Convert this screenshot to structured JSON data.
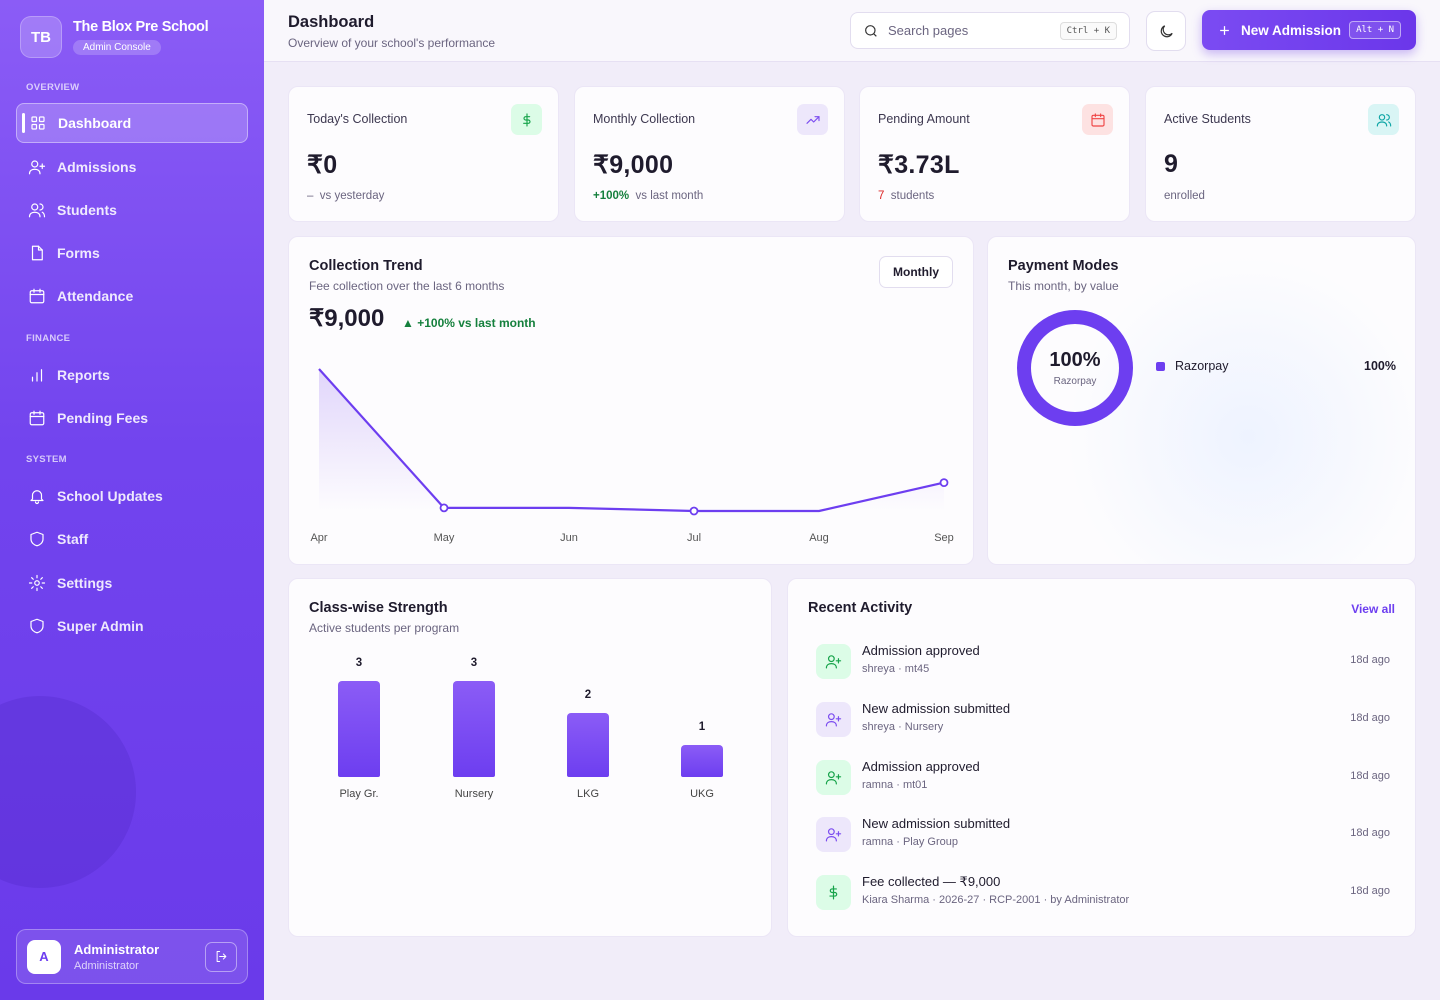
{
  "sidebar": {
    "logo": "TB",
    "school_name": "The Blox Pre School",
    "console_badge": "Admin Console",
    "sections": [
      "OVERVIEW",
      "FINANCE",
      "SYSTEM"
    ],
    "items": [
      {
        "label": "Dashboard",
        "icon": "grid-icon"
      },
      {
        "label": "Admissions",
        "icon": "user-plus-icon"
      },
      {
        "label": "Students",
        "icon": "users-icon"
      },
      {
        "label": "Forms",
        "icon": "file-icon"
      },
      {
        "label": "Attendance",
        "icon": "calendar-icon"
      },
      {
        "label": "Reports",
        "icon": "bar-chart-icon"
      },
      {
        "label": "Pending Fees",
        "icon": "calendar-icon"
      },
      {
        "label": "School Updates",
        "icon": "bell-icon"
      },
      {
        "label": "Staff",
        "icon": "shield-icon"
      },
      {
        "label": "Settings",
        "icon": "gear-icon"
      },
      {
        "label": "Super Admin",
        "icon": "shield-icon"
      }
    ],
    "active_item": "Dashboard",
    "user": {
      "initial": "A",
      "name": "Administrator",
      "role": "Administrator"
    }
  },
  "header": {
    "title": "Dashboard",
    "subtitle": "Overview of your school's performance",
    "search_placeholder": "Search pages",
    "search_shortcut": "Ctrl + K",
    "new_button_label": "New Admission",
    "new_button_shortcut": "Alt + N"
  },
  "stats": [
    {
      "label": "Today's Collection",
      "value": "₹0",
      "delta": "–",
      "delta_text": "vs yesterday",
      "icon": "dollar-icon",
      "icon_color": "#16a34a",
      "icon_bg": "#dcfce7"
    },
    {
      "label": "Monthly Collection",
      "value": "₹9,000",
      "delta": "+100%",
      "delta_text": "vs last month",
      "icon": "trending-up-icon",
      "icon_color": "#7c4df0",
      "icon_bg": "#ede7fb"
    },
    {
      "label": "Pending Amount",
      "value": "₹3.73L",
      "delta": "7",
      "delta_text": "students",
      "icon": "calendar-icon",
      "icon_color": "#ef4444",
      "icon_bg": "#fde2e2"
    },
    {
      "label": "Active Students",
      "value": "9",
      "delta": "",
      "delta_text": "enrolled",
      "icon": "users-icon",
      "icon_color": "#0ea5a5",
      "icon_bg": "#d9f5f5"
    }
  ],
  "trend": {
    "title": "Collection Trend",
    "subtitle": "Fee collection over the last 6 months",
    "period_button": "Monthly",
    "value": "₹9,000",
    "delta": "▲ +100% vs last month"
  },
  "payment": {
    "title": "Payment Modes",
    "subtitle": "This month, by value",
    "center_pct": "100%",
    "center_label": "Razorpay",
    "legend": [
      {
        "name": "Razorpay",
        "value": "100%",
        "color": "#6d3ef0"
      }
    ]
  },
  "classes": {
    "title": "Class-wise Strength",
    "subtitle": "Active students per program"
  },
  "activity": {
    "title": "Recent Activity",
    "view_all": "View all",
    "items": [
      {
        "title": "Admission approved",
        "sub": "shreya · mt45",
        "time": "18d ago",
        "icon": "user-check-icon",
        "color": "#16a34a",
        "bg": "#dcfce7"
      },
      {
        "title": "New admission submitted",
        "sub": "shreya · Nursery",
        "time": "18d ago",
        "icon": "user-plus-icon",
        "color": "#7c4df0",
        "bg": "#ede7fb"
      },
      {
        "title": "Admission approved",
        "sub": "ramna · mt01",
        "time": "18d ago",
        "icon": "user-check-icon",
        "color": "#16a34a",
        "bg": "#dcfce7"
      },
      {
        "title": "New admission submitted",
        "sub": "ramna · Play Group",
        "time": "18d ago",
        "icon": "user-plus-icon",
        "color": "#7c4df0",
        "bg": "#ede7fb"
      },
      {
        "title": "Fee collected — ₹9,000",
        "sub": "Kiara Sharma · 2026-27 · RCP-2001 · by Administrator",
        "time": "18d ago",
        "icon": "dollar-icon",
        "color": "#16a34a",
        "bg": "#dcfce7"
      }
    ]
  },
  "chart_data": [
    {
      "type": "line",
      "categories": [
        "Apr",
        "May",
        "Jun",
        "Jul",
        "Aug",
        "Sep"
      ],
      "values": [
        45000,
        1000,
        1000,
        0,
        0,
        9000
      ],
      "color": "#6d3ef0"
    },
    {
      "type": "pie",
      "categories": [
        "Razorpay"
      ],
      "values": [
        100
      ]
    },
    {
      "type": "bar",
      "categories": [
        "Play Gr.",
        "Nursery",
        "LKG",
        "UKG"
      ],
      "values": [
        3,
        3,
        2,
        1
      ]
    }
  ]
}
